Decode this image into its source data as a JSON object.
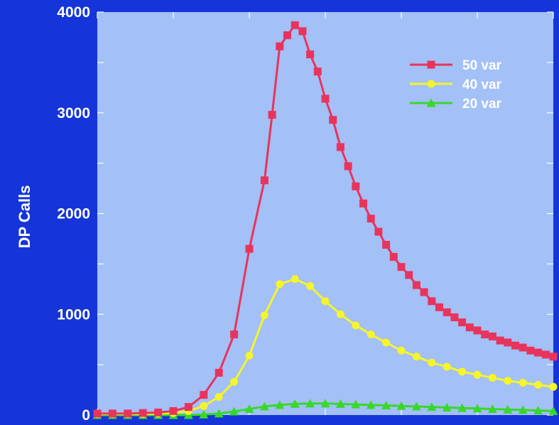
{
  "chart_data": {
    "type": "line",
    "title": "",
    "xlabel": "",
    "ylabel": "DP Calls",
    "ylim": [
      0,
      4000
    ],
    "yticks": [
      0,
      1000,
      2000,
      3000,
      4000
    ],
    "ytick_labels": [
      "0",
      "1000",
      "2000",
      "3000",
      "4000"
    ],
    "xlim": [
      0,
      30
    ],
    "grid": false,
    "legend_position": "top-right",
    "plot_background": "#a3c0f7",
    "page_background": "#1535d8",
    "x": [
      0,
      1,
      2,
      3,
      4,
      5,
      6,
      7,
      8,
      9,
      10,
      11,
      12,
      13,
      14,
      15,
      16,
      17,
      18,
      19,
      20,
      21,
      22,
      23,
      24,
      25,
      26,
      27,
      28,
      29,
      30
    ],
    "series": [
      {
        "name": "50 var",
        "color": "#e8345c",
        "marker": "square",
        "x": [
          0,
          1,
          2,
          3,
          4,
          5,
          6,
          7,
          8,
          9,
          10,
          11,
          11.5,
          12,
          12.5,
          13,
          13.5,
          14,
          14.5,
          15,
          15.5,
          16,
          16.5,
          17,
          17.5,
          18,
          18.5,
          19,
          19.5,
          20,
          20.5,
          21,
          21.5,
          22,
          22.5,
          23,
          23.5,
          24,
          24.5,
          25,
          25.5,
          26,
          26.5,
          27,
          27.5,
          28,
          28.5,
          29,
          29.5,
          30
        ],
        "values": [
          15,
          15,
          15,
          20,
          25,
          40,
          80,
          200,
          420,
          800,
          1650,
          2330,
          2980,
          3660,
          3770,
          3870,
          3810,
          3580,
          3410,
          3140,
          2930,
          2660,
          2470,
          2270,
          2100,
          1950,
          1820,
          1690,
          1570,
          1470,
          1390,
          1290,
          1220,
          1130,
          1070,
          1020,
          970,
          920,
          870,
          840,
          800,
          780,
          740,
          720,
          690,
          670,
          640,
          620,
          600,
          580
        ]
      },
      {
        "name": "40 var",
        "color": "#f5f52a",
        "marker": "circle",
        "x": [
          0,
          1,
          2,
          3,
          4,
          5,
          6,
          7,
          8,
          9,
          10,
          11,
          12,
          13,
          14,
          15,
          16,
          17,
          18,
          19,
          20,
          21,
          22,
          23,
          24,
          25,
          26,
          27,
          28,
          29,
          30
        ],
        "values": [
          10,
          10,
          10,
          10,
          15,
          20,
          40,
          90,
          180,
          330,
          590,
          990,
          1300,
          1350,
          1280,
          1130,
          1000,
          890,
          800,
          720,
          640,
          580,
          520,
          480,
          430,
          400,
          370,
          340,
          320,
          300,
          280
        ]
      },
      {
        "name": "20 var",
        "color": "#38d82a",
        "marker": "triangle",
        "x": [
          0,
          1,
          2,
          3,
          4,
          5,
          6,
          7,
          8,
          9,
          10,
          11,
          12,
          13,
          14,
          15,
          16,
          17,
          18,
          19,
          20,
          21,
          22,
          23,
          24,
          25,
          26,
          27,
          28,
          29,
          30
        ],
        "values": [
          0,
          0,
          0,
          0,
          0,
          0,
          0,
          5,
          15,
          35,
          60,
          85,
          100,
          110,
          115,
          115,
          110,
          105,
          100,
          95,
          90,
          85,
          80,
          75,
          70,
          65,
          60,
          55,
          50,
          45,
          40
        ]
      }
    ]
  }
}
